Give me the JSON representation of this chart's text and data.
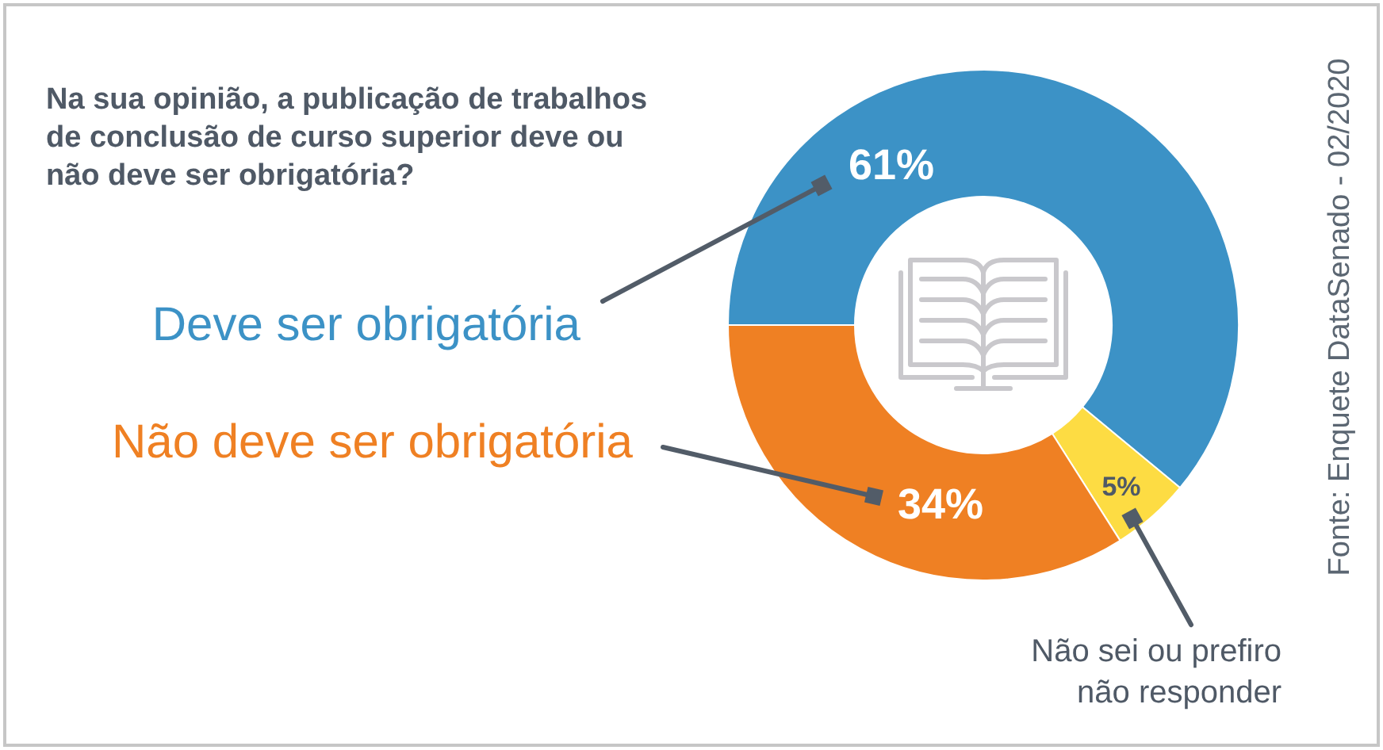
{
  "chart_data": {
    "type": "donut",
    "title": "Na sua opinião, a publicação de trabalhos de conclusão de curso superior deve ou não deve ser obrigatória?",
    "categories": [
      "Deve ser obrigatória",
      "Não sei ou prefiro não responder",
      "Não deve ser obrigatória"
    ],
    "values": [
      61,
      5,
      34
    ],
    "colors": [
      "#3c92c6",
      "#fddc43",
      "#ef8023"
    ],
    "value_labels": [
      "61%",
      "5%",
      "34%"
    ],
    "annotations": [
      "Fonte: Enquete DataSenado - 02/2020"
    ]
  }
}
